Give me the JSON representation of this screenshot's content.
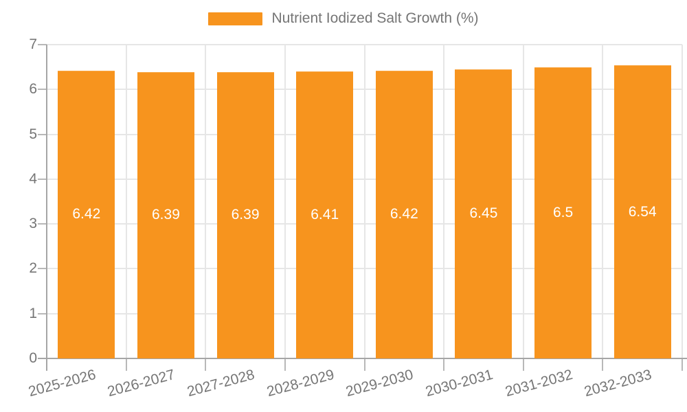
{
  "chart_data": {
    "type": "bar",
    "title": "Nutrient Iodized Salt Growth (%)",
    "categories": [
      "2025-2026",
      "2026-2027",
      "2027-2028",
      "2028-2029",
      "2029-2030",
      "2030-2031",
      "2031-2032",
      "2032-2033"
    ],
    "series": [
      {
        "name": "Nutrient Iodized Salt Growth (%)",
        "values": [
          6.42,
          6.39,
          6.39,
          6.41,
          6.42,
          6.45,
          6.5,
          6.54
        ]
      }
    ],
    "value_labels": [
      "6.42",
      "6.39",
      "6.39",
      "6.41",
      "6.42",
      "6.45",
      "6.5",
      "6.54"
    ],
    "xlabel": "",
    "ylabel": "",
    "ylim": [
      0,
      7
    ],
    "y_ticks": [
      0,
      1,
      2,
      3,
      4,
      5,
      6,
      7
    ],
    "grid": true,
    "legend_position": "top-center"
  },
  "legend": {
    "label": "Nutrient Iodized Salt Growth (%)"
  },
  "colors": {
    "bar": "#f7941e",
    "bar_border": "#f9a743",
    "grid": "#e6e6e6",
    "axis": "#a6a6a6",
    "tick": "#b8b8b8",
    "text": "#757575",
    "value_label": "#ffffff",
    "background": "#ffffff"
  }
}
